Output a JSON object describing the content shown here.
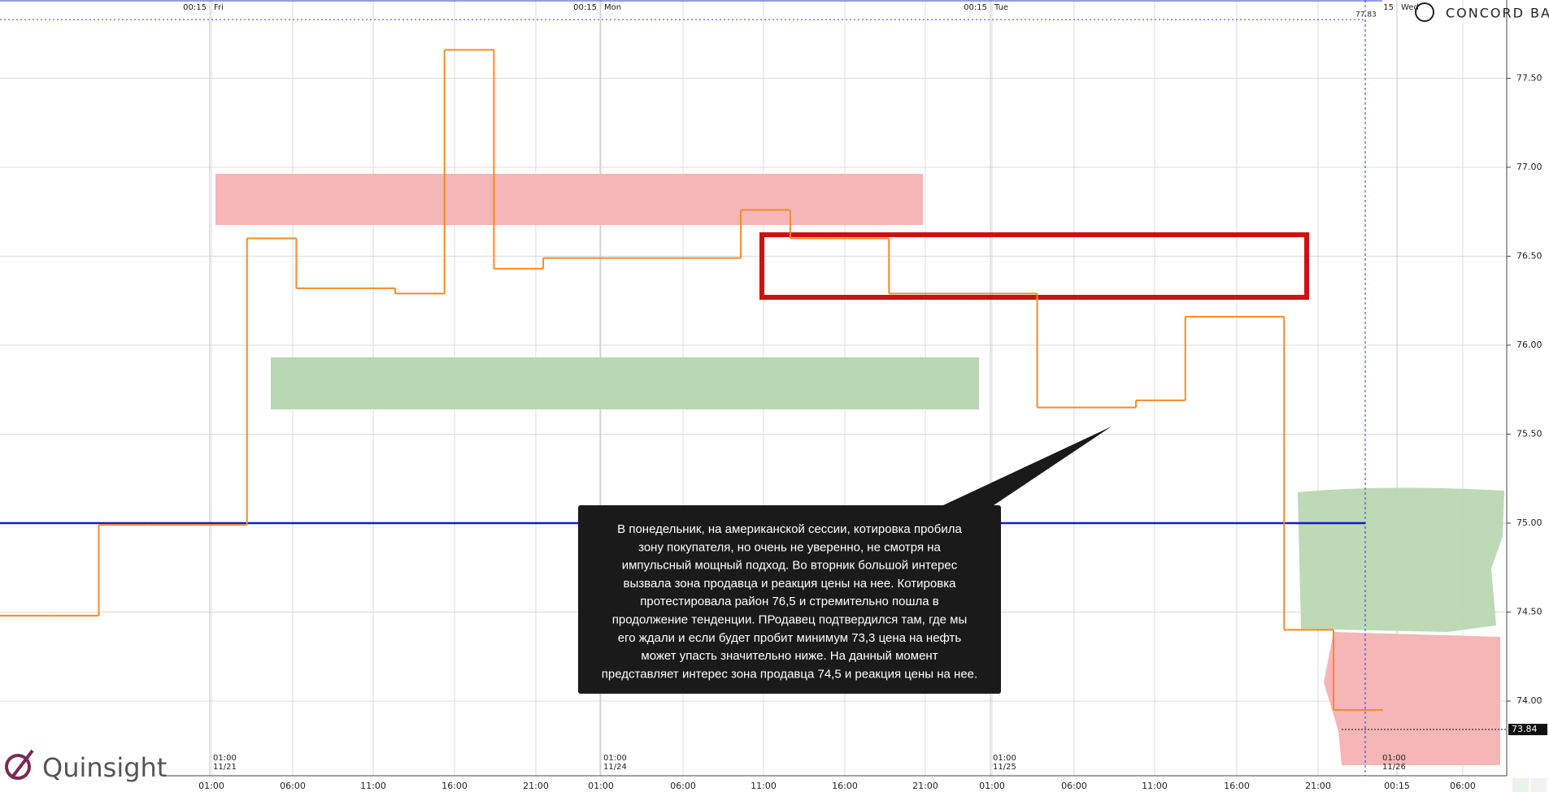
{
  "header": {
    "brand": "CONCORD BAY",
    "watermark": "Quinsight"
  },
  "chart_data": {
    "type": "step",
    "values": [
      74.48,
      74.48,
      74.99,
      74.99,
      74.99,
      76.6,
      76.32,
      76.32,
      76.29,
      77.66,
      76.43,
      76.49,
      76.49,
      76.49,
      76.49,
      76.76,
      76.6,
      76.6,
      76.29,
      76.29,
      76.29,
      75.65,
      75.65,
      75.69,
      76.16,
      76.16,
      74.4,
      73.95
    ],
    "color": "#f28c28",
    "ylim": [
      73.58,
      77.94
    ],
    "yticks": [
      {
        "value": 77.5,
        "label": "77.50"
      },
      {
        "value": 77,
        "label": "77.00"
      },
      {
        "value": 76.5,
        "label": "76.50"
      },
      {
        "value": 76,
        "label": "76.00"
      },
      {
        "value": 75.5,
        "label": "75.50"
      },
      {
        "value": 75,
        "label": "75.00"
      },
      {
        "value": 74.5,
        "label": "74.50"
      },
      {
        "value": 74,
        "label": "74.00"
      }
    ],
    "grid": true,
    "time_labels": [
      "01:00",
      "06:00",
      "11:00",
      "16:00",
      "21:00",
      "01:00",
      "06:00",
      "11:00",
      "16:00",
      "21:00",
      "01:00",
      "06:00",
      "11:00",
      "16:00",
      "21:00",
      "00:15",
      "06:00"
    ],
    "session_top": [
      {
        "time": "00:15",
        "day": "Fri"
      },
      {
        "time": "00:15",
        "day": "Mon"
      },
      {
        "time": "00:15",
        "day": "Tue"
      },
      {
        "time": "15",
        "day": "Wed"
      }
    ],
    "session_bottom": [
      {
        "time": "01:00",
        "date": "11/21"
      },
      {
        "time": "01:00",
        "date": "11/24"
      },
      {
        "time": "01:00",
        "date": "11/25"
      },
      {
        "time": "01:00",
        "date": "11/26"
      }
    ],
    "level": {
      "value": 75,
      "color": "#1020c0"
    },
    "high": {
      "value": 77.83,
      "label": "77.83"
    },
    "last_price": {
      "value": 73.84,
      "label": "73.84"
    },
    "annotation": [
      "В понедельник, на американской сессии, котировка пробила",
      "зону покупателя, но очень не уверенно, не смотря на",
      "импульсный мощный подход. Во вторник большой интерес",
      "вызвала зона продавца и реакция цены на нее. Котировка",
      "протестировала район 76,5 и стремительно пошла в",
      "продолжение тенденции. ПРодавец подтвердился там, где мы",
      "его ждали и если будет пробит минимум 73,3 цена на нефть",
      "может упасть значительно ниже.  На данный момент",
      "представляет интерес зона продавца 74,5 и реакция цены на нее."
    ]
  }
}
